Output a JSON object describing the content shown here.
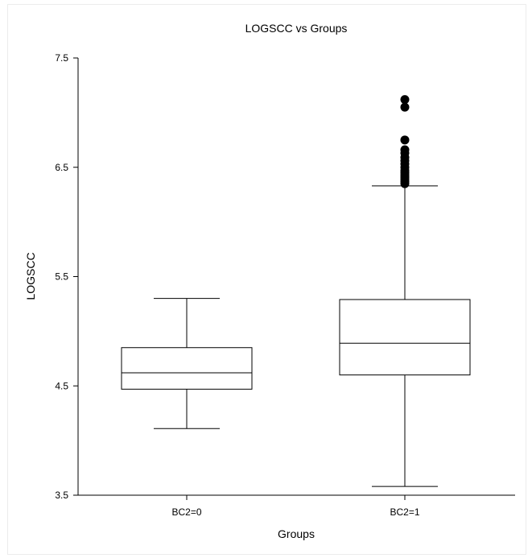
{
  "chart_data": {
    "type": "boxplot",
    "title": "LOGSCC vs Groups",
    "xlabel": "Groups",
    "ylabel": "LOGSCC",
    "ylim": [
      3.5,
      7.5
    ],
    "yticks": [
      "3.5",
      "4.5",
      "5.5",
      "6.5",
      "7.5"
    ],
    "grid": false,
    "legend": "none",
    "categories": [
      "BC2=0",
      "BC2=1"
    ],
    "boxes": [
      {
        "name": "BC2=0",
        "whisker_low": 4.11,
        "q1": 4.47,
        "median": 4.62,
        "q3": 4.85,
        "whisker_high": 5.3,
        "outliers": []
      },
      {
        "name": "BC2=1",
        "whisker_low": 3.58,
        "q1": 4.6,
        "median": 4.89,
        "q3": 5.29,
        "whisker_high": 6.33,
        "outliers": [
          6.35,
          6.37,
          6.39,
          6.41,
          6.43,
          6.45,
          6.47,
          6.5,
          6.53,
          6.56,
          6.59,
          6.63,
          6.66,
          6.75,
          7.05,
          7.12
        ]
      }
    ],
    "colors": {
      "box_fill": "#ffffff",
      "line": "#000000",
      "outlier": "#000000"
    }
  }
}
